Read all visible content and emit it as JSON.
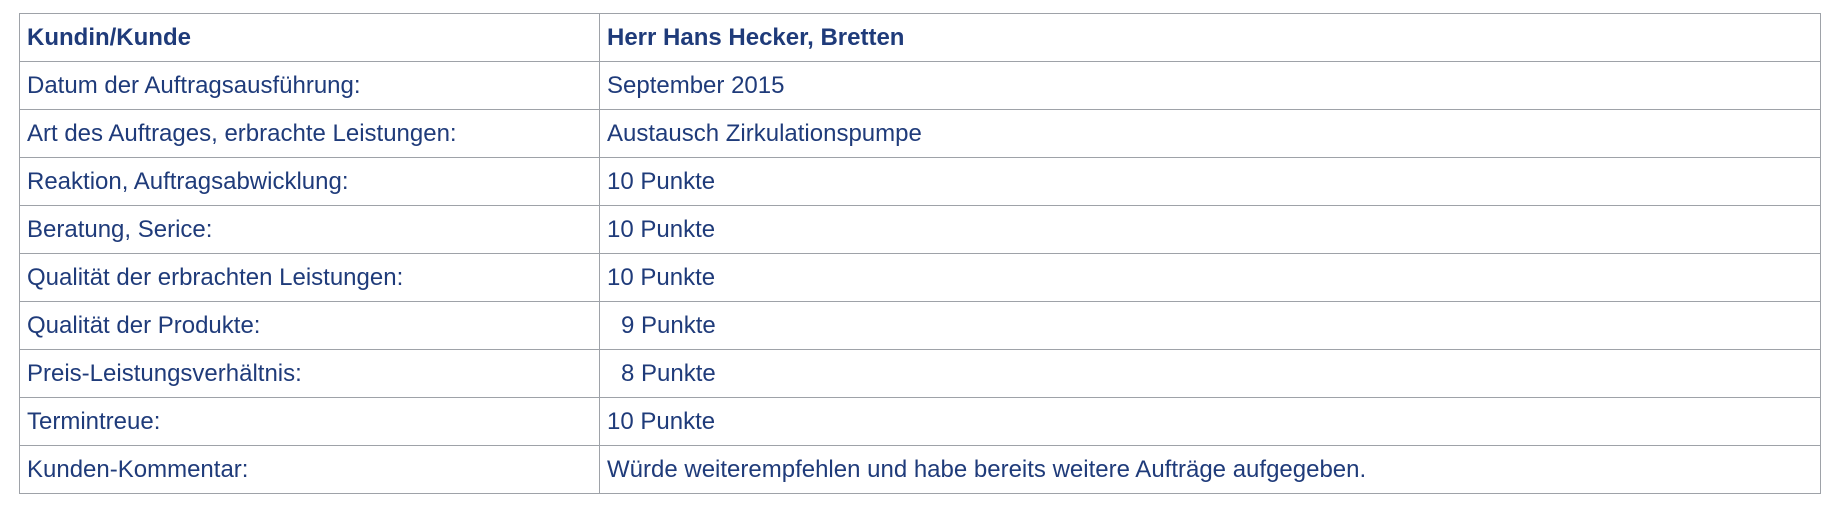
{
  "table": {
    "header": {
      "label": "Kundin/Kunde",
      "value": "Herr Hans Hecker, Bretten"
    },
    "rows": [
      {
        "label": "Datum der Auftragsausführung:",
        "value": "September 2015"
      },
      {
        "label": "Art des Auftrages, erbrachte Leistungen:",
        "value": "Austausch Zirkulationspumpe"
      },
      {
        "label": "Reaktion, Auftragsabwicklung:",
        "value": "10 Punkte"
      },
      {
        "label": "Beratung, Serice:",
        "value": "10 Punkte"
      },
      {
        "label": "Qualität der erbrachten Leistungen:",
        "value": "10 Punkte"
      },
      {
        "label": "Qualität der Produkte:",
        "value": "9 Punkte"
      },
      {
        "label": "Preis-Leistungsverhältnis:",
        "value": "8 Punkte"
      },
      {
        "label": "Termintreue:",
        "value": "10 Punkte"
      },
      {
        "label": "Kunden-Kommentar:",
        "value": "Würde weiterempfehlen und habe bereits weitere Aufträge aufgegeben."
      }
    ]
  },
  "colors": {
    "text": "#1f3b7a",
    "border": "#9ea2a8"
  }
}
